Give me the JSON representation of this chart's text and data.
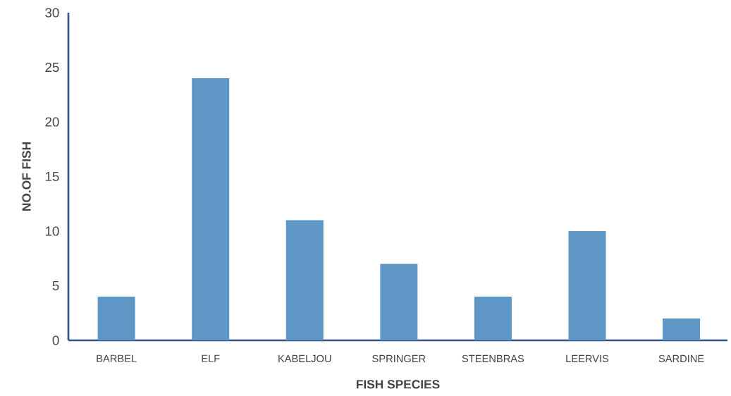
{
  "chart_data": {
    "type": "bar",
    "xlabel": "FISH SPECIES",
    "ylabel": "NO.OF FISH",
    "categories": [
      "BARBEL",
      "ELF",
      "KABELJOU",
      "SPRINGER",
      "STEENBRAS",
      "LEERVIS",
      "SARDINE"
    ],
    "values": [
      4,
      24,
      11,
      7,
      4,
      10,
      2
    ],
    "color": "#5e96c6",
    "ylim": [
      0,
      30
    ],
    "yticks": [
      0,
      5,
      10,
      15,
      20,
      25,
      30
    ],
    "grid": false
  }
}
